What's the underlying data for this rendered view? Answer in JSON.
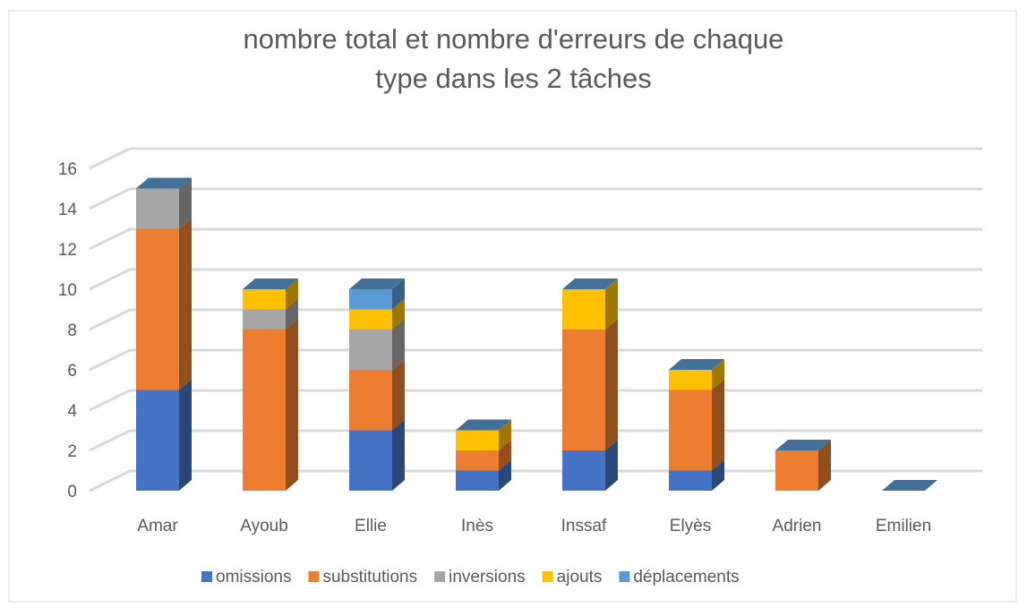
{
  "chart_data": {
    "type": "bar3d_stacked",
    "title": "nombre total et nombre d'erreurs de chaque type dans les 2 tâches",
    "categories": [
      "Amar",
      "Ayoub",
      "Ellie",
      "Inès",
      "Inssaf",
      "Elyès",
      "Adrien",
      "Emilien"
    ],
    "series": [
      {
        "name": "omissions",
        "color": "#4472c4",
        "values": [
          5,
          0,
          3,
          1,
          2,
          1,
          0,
          0
        ]
      },
      {
        "name": "substitutions",
        "color": "#ed7d31",
        "values": [
          8,
          8,
          3,
          1,
          6,
          4,
          2,
          0
        ]
      },
      {
        "name": "inversions",
        "color": "#a5a5a5",
        "values": [
          2,
          1,
          2,
          0,
          0,
          0,
          0,
          0
        ]
      },
      {
        "name": "ajouts",
        "color": "#ffc000",
        "values": [
          0,
          1,
          1,
          1,
          2,
          1,
          0,
          0
        ]
      },
      {
        "name": "déplacements",
        "color": "#5b9bd5",
        "values": [
          0,
          0,
          1,
          0,
          0,
          0,
          0,
          0
        ]
      }
    ],
    "ylim": [
      0,
      16
    ],
    "yticks": [
      0,
      2,
      4,
      6,
      8,
      10,
      12,
      14,
      16
    ],
    "grid": true,
    "legend": "bottom"
  }
}
